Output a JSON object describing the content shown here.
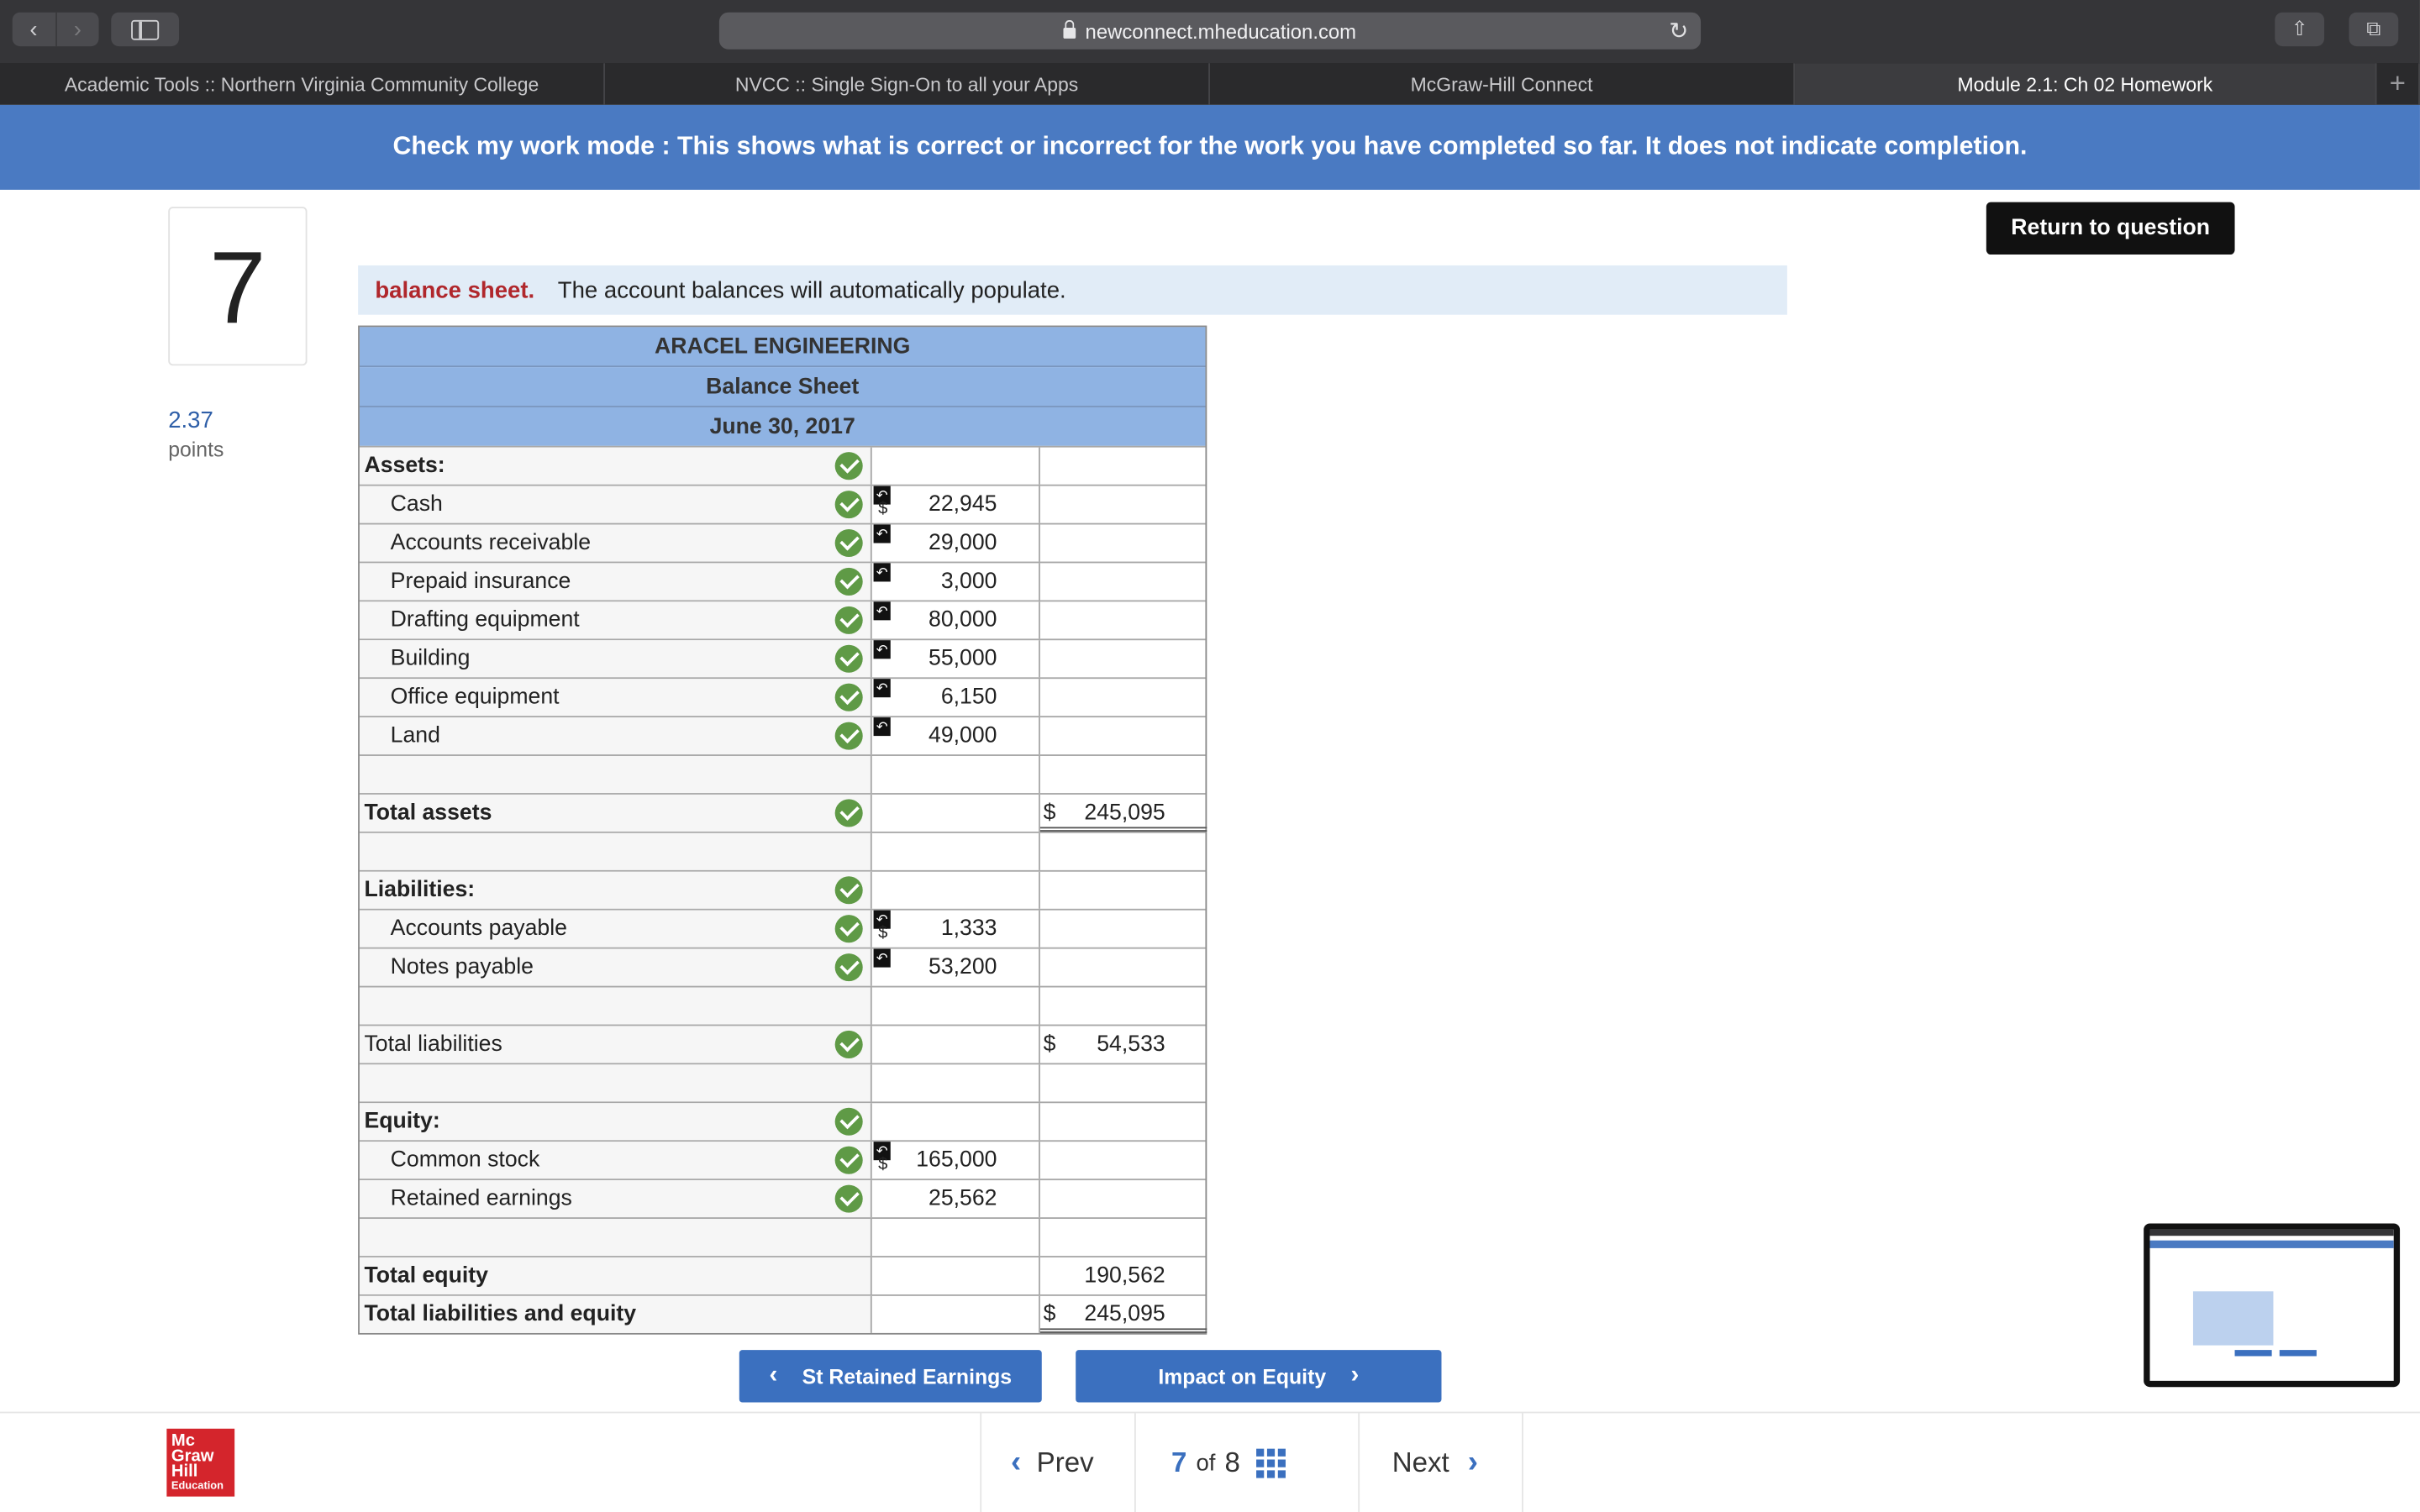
{
  "browser": {
    "url": "newconnect.mheducation.com",
    "tabs": [
      {
        "label": "Academic Tools :: Northern Virginia Community College",
        "active": false
      },
      {
        "label": "NVCC :: Single Sign-On to all your Apps",
        "active": false
      },
      {
        "label": "McGraw-Hill Connect",
        "active": false
      },
      {
        "label": "Module 2.1: Ch 02 Homework",
        "active": true
      }
    ],
    "new_tab": "+"
  },
  "banner": {
    "text": "Check my work mode : This shows what is correct or incorrect for the work you have completed so far. It does not indicate completion."
  },
  "return_button": "Return to question",
  "question": {
    "number": "7",
    "points_value": "2.37",
    "points_label": "points"
  },
  "instruction": {
    "highlight": "balance sheet.",
    "text": "The account balances will automatically populate."
  },
  "sheet": {
    "company": "ARACEL ENGINEERING",
    "title": "Balance Sheet",
    "date": "June 30, 2017",
    "assets_heading": "Assets:",
    "assets": [
      {
        "label": "Cash",
        "amount": "22,945",
        "dollar": "$"
      },
      {
        "label": "Accounts receivable",
        "amount": "29,000"
      },
      {
        "label": "Prepaid insurance",
        "amount": "3,000"
      },
      {
        "label": "Drafting equipment",
        "amount": "80,000"
      },
      {
        "label": "Building",
        "amount": "55,000"
      },
      {
        "label": "Office equipment",
        "amount": "6,150"
      },
      {
        "label": "Land",
        "amount": "49,000"
      }
    ],
    "total_assets": {
      "label": "Total assets",
      "dollar": "$",
      "amount": "245,095"
    },
    "liabilities_heading": "Liabilities:",
    "liabilities": [
      {
        "label": "Accounts payable",
        "amount": "1,333",
        "dollar": "$"
      },
      {
        "label": "Notes payable",
        "amount": "53,200"
      }
    ],
    "total_liabilities": {
      "label": "Total liabilities",
      "dollar": "$",
      "amount": "54,533"
    },
    "equity_heading": "Equity:",
    "equity": [
      {
        "label": "Common stock",
        "amount": "165,000",
        "dollar": "$"
      },
      {
        "label": "Retained earnings",
        "amount": "25,562"
      }
    ],
    "total_equity": {
      "label": "Total equity",
      "amount": "190,562"
    },
    "total_liab_equity": {
      "label": "Total liabilities and equity",
      "dollar": "$",
      "amount": "245,095"
    }
  },
  "subtabs": {
    "prev": "St Retained Earnings",
    "next": "Impact on Equity"
  },
  "footer": {
    "logo_lines": [
      "Mc",
      "Graw",
      "Hill",
      "Education"
    ],
    "prev": "Prev",
    "current": "7",
    "of": "of",
    "total": "8",
    "next": "Next"
  },
  "colors": {
    "banner": "#4a7ac2",
    "check": "#5f9a46",
    "header_blue": "#8fb3e3",
    "accent": "#3b70bf"
  }
}
